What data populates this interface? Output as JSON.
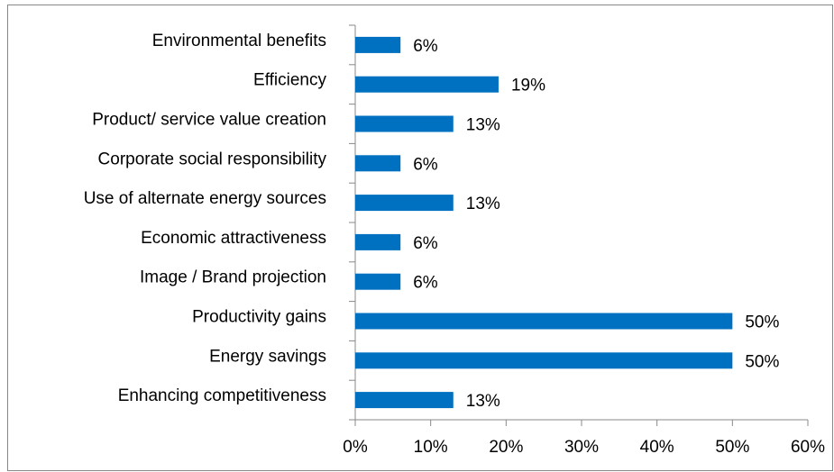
{
  "chart_data": {
    "type": "bar",
    "orientation": "horizontal",
    "categories": [
      "Environmental benefits",
      "Efficiency",
      "Product/ service value creation",
      "Corporate social responsibility",
      "Use of alternate energy sources",
      "Economic attractiveness",
      "Image / Brand projection",
      "Productivity gains",
      "Energy savings",
      "Enhancing competitiveness"
    ],
    "values": [
      6,
      19,
      13,
      6,
      13,
      6,
      6,
      50,
      50,
      13
    ],
    "value_labels": [
      "6%",
      "19%",
      "13%",
      "6%",
      "13%",
      "6%",
      "6%",
      "50%",
      "50%",
      "13%"
    ],
    "color": "#0070c0",
    "xlim": [
      0,
      60
    ],
    "xticks": [
      {
        "value": 0,
        "label": "0%"
      },
      {
        "value": 10,
        "label": "10%"
      },
      {
        "value": 20,
        "label": "20%"
      },
      {
        "value": 30,
        "label": "30%"
      },
      {
        "value": 40,
        "label": "40%"
      },
      {
        "value": 50,
        "label": "50%"
      },
      {
        "value": 60,
        "label": "60%"
      }
    ],
    "grid": false
  }
}
